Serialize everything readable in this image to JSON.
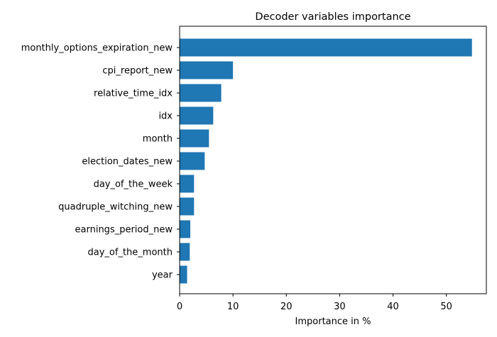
{
  "chart_data": {
    "type": "bar",
    "orientation": "horizontal",
    "title": "Decoder variables importance",
    "xlabel": "Importance in %",
    "ylabel": "",
    "categories": [
      "monthly_options_expiration_new",
      "cpi_report_new",
      "relative_time_idx",
      "idx",
      "month",
      "election_dates_new",
      "day_of_the_week",
      "quadruple_witching_new",
      "earnings_period_new",
      "day_of_the_month",
      "year"
    ],
    "values": [
      54.8,
      10.0,
      7.8,
      6.3,
      5.5,
      4.7,
      2.7,
      2.7,
      2.0,
      1.9,
      1.4
    ],
    "xlim": [
      0,
      57.5
    ],
    "xticks": [
      0,
      10,
      20,
      30,
      40,
      50
    ],
    "grid": false,
    "bar_color": "#1f77b4"
  }
}
